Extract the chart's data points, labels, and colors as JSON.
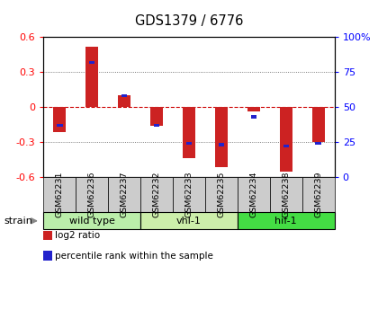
{
  "title": "GDS1379 / 6776",
  "samples": [
    "GSM62231",
    "GSM62236",
    "GSM62237",
    "GSM62232",
    "GSM62233",
    "GSM62235",
    "GSM62234",
    "GSM62238",
    "GSM62239"
  ],
  "log2_ratio": [
    -0.22,
    0.52,
    0.1,
    -0.16,
    -0.44,
    -0.52,
    -0.04,
    -0.56,
    -0.3
  ],
  "percentile_rank": [
    37,
    82,
    58,
    37,
    24,
    23,
    43,
    22,
    24
  ],
  "ylim": [
    -0.6,
    0.6
  ],
  "yticks": [
    -0.6,
    -0.3,
    0.0,
    0.3,
    0.6
  ],
  "right_yticks_pct": [
    0,
    25,
    50,
    75,
    100
  ],
  "right_ylabel_labels": [
    "0",
    "25",
    "50",
    "75",
    "100%"
  ],
  "bar_color": "#cc2222",
  "pct_color": "#2222cc",
  "hline_color": "#cc0000",
  "grid_color": "#555555",
  "bg_color": "#ffffff",
  "groups": [
    {
      "label": "wild type",
      "start": 0,
      "end": 3,
      "color": "#bbeeaa"
    },
    {
      "label": "vhl-1",
      "start": 3,
      "end": 6,
      "color": "#cceeaa"
    },
    {
      "label": "hif-1",
      "start": 6,
      "end": 9,
      "color": "#44dd44"
    }
  ],
  "strain_label": "strain",
  "legend_items": [
    {
      "color": "#cc2222",
      "label": "log2 ratio"
    },
    {
      "color": "#2222cc",
      "label": "percentile rank within the sample"
    }
  ],
  "sample_box_color": "#cccccc"
}
